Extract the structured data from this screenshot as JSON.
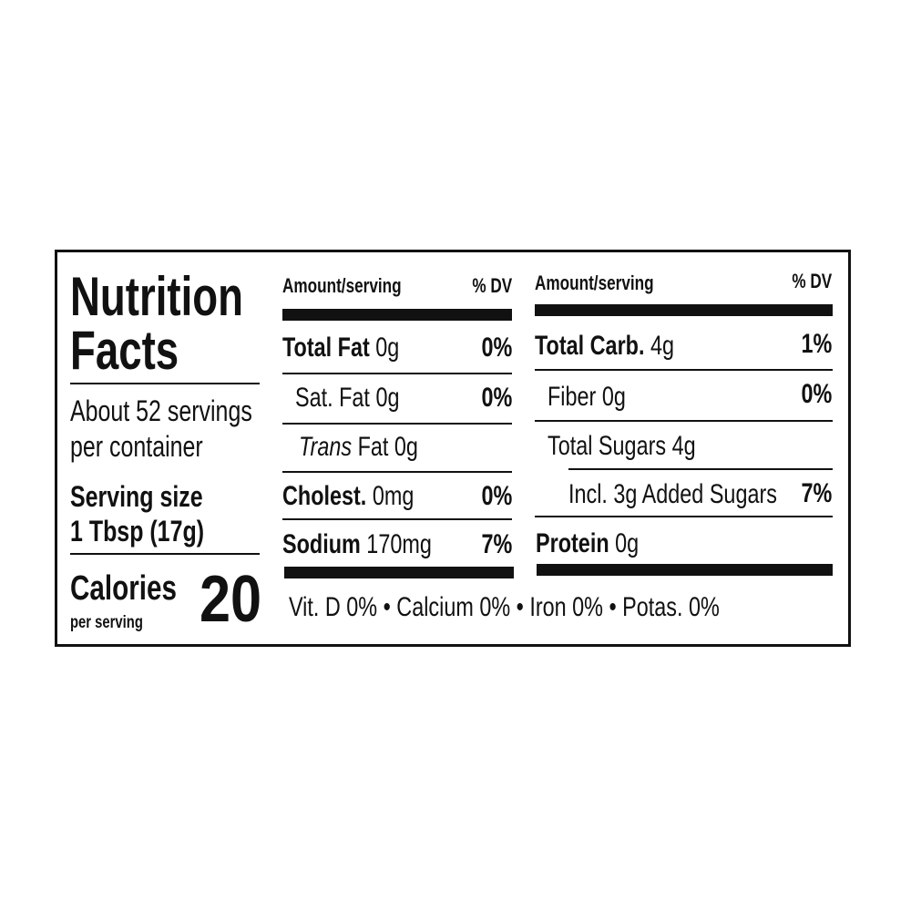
{
  "title_line1": "Nutrition",
  "title_line2": "Facts",
  "servings_line1": "About 52 servings",
  "servings_line2": "per container",
  "serving_size_label": "Serving size",
  "serving_size_value": "1 Tbsp (17g)",
  "calories_label": "Calories",
  "calories_sub": "per serving",
  "calories_value": "20",
  "header": {
    "amount": "Amount/serving",
    "dv": "% DV"
  },
  "left_rows": [
    {
      "name": "Total Fat",
      "amount": "0g",
      "dv": "0%"
    },
    {
      "name": "Sat. Fat",
      "amount": "0g",
      "dv": "0%"
    },
    {
      "name_italic": "Trans",
      "name": "Fat",
      "amount": "0g",
      "dv": ""
    },
    {
      "name": "Cholest.",
      "amount": "0mg",
      "dv": "0%"
    },
    {
      "name": "Sodium",
      "amount": "170mg",
      "dv": "7%"
    }
  ],
  "right_rows": [
    {
      "name": "Total Carb.",
      "amount": "4g",
      "dv": "1%"
    },
    {
      "name": "Fiber",
      "amount": "0g",
      "dv": "0%"
    },
    {
      "name": "Total Sugars",
      "amount": "4g",
      "dv": ""
    },
    {
      "name": "Incl. 3g Added Sugars",
      "amount": "",
      "dv": "7%"
    },
    {
      "name": "Protein",
      "amount": "0g",
      "dv": ""
    }
  ],
  "footer": "Vit. D 0% • Calcium 0% • Iron 0% • Potas. 0%"
}
